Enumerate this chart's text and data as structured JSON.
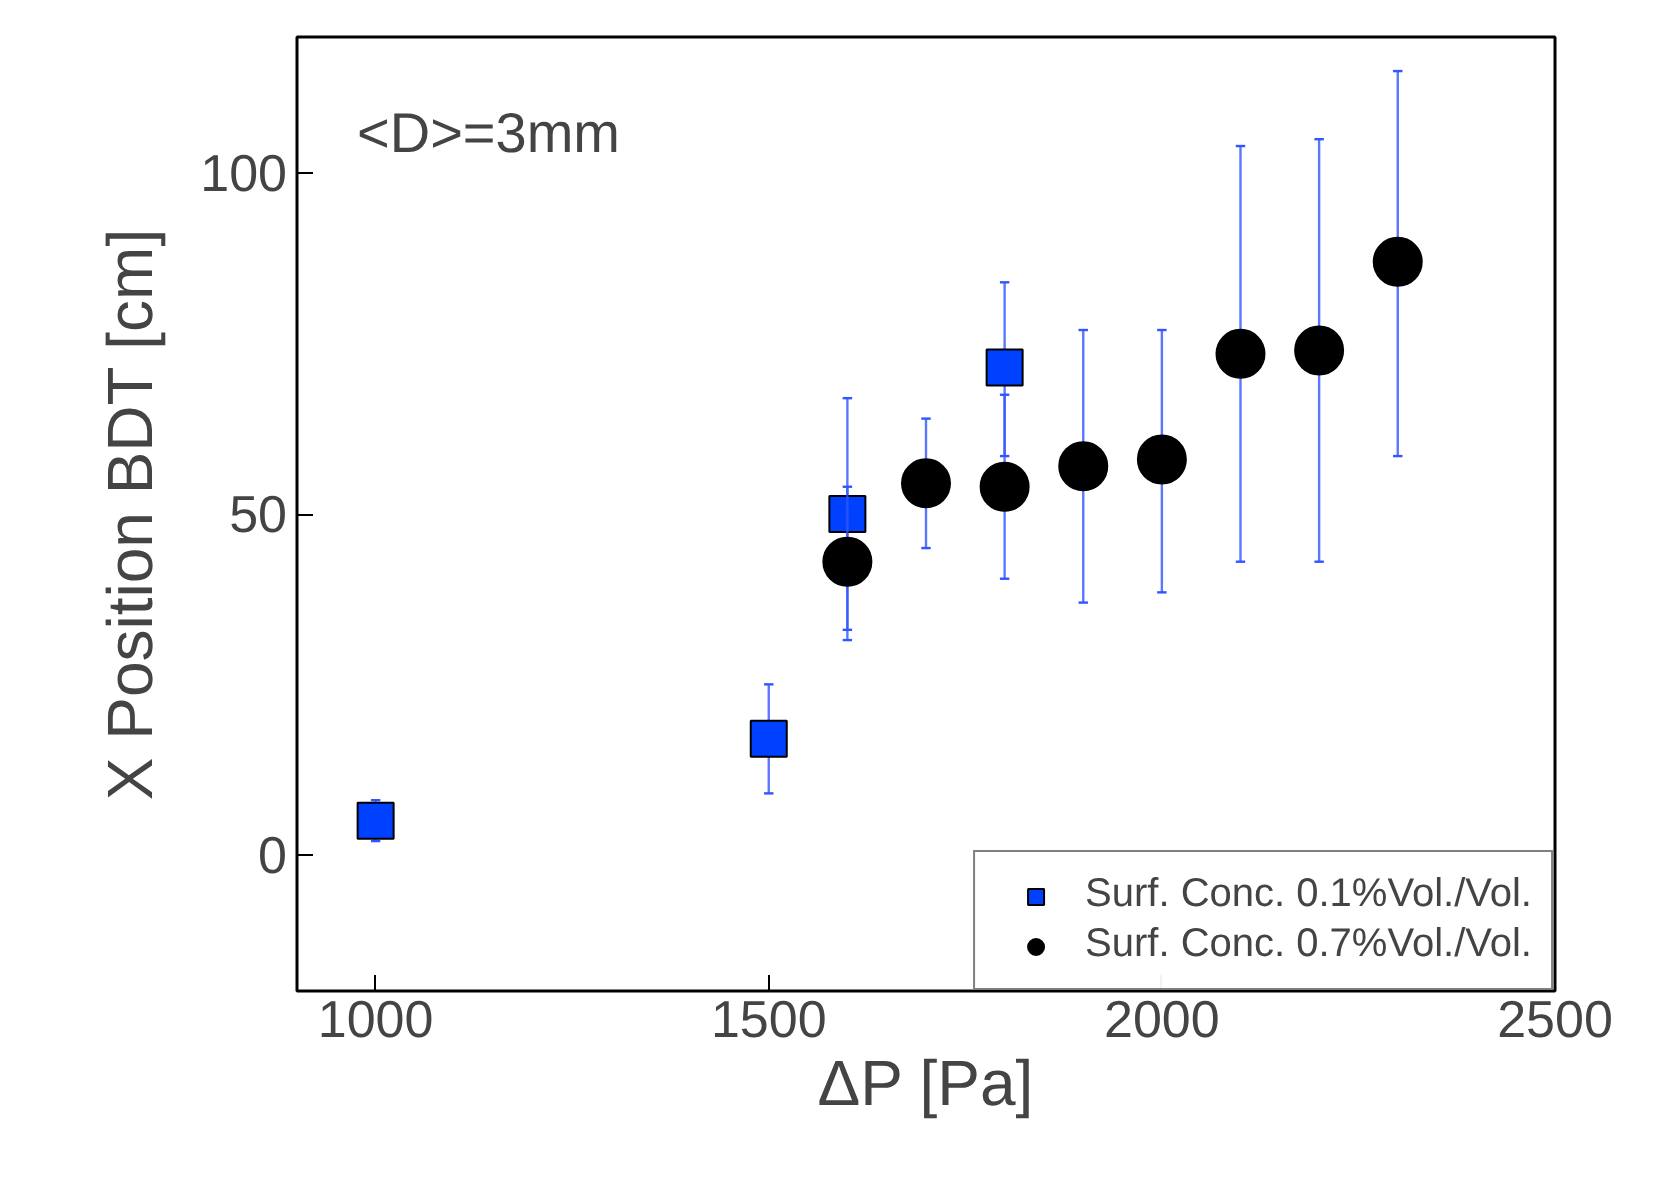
{
  "chart_data": {
    "type": "scatter",
    "xlabel": "ΔP [Pa]",
    "ylabel": "X Position BDT [cm]",
    "annotations": [
      "<D>=3mm"
    ],
    "xlim": [
      900,
      2500
    ],
    "xticks": [
      1000,
      1500,
      2000,
      2500
    ],
    "ylim": [
      -20,
      120
    ],
    "yticks": [
      0,
      50,
      100
    ],
    "grid": false,
    "legend": "bottom right",
    "series": [
      {
        "name": "Surf. Conc. 0.1%Vol./Vol.",
        "color": "#0040ff",
        "marker": "square",
        "x": [
          1000,
          1500,
          1600,
          1800
        ],
        "values": [
          5,
          17,
          50,
          71.5
        ],
        "errors": [
          [
            2,
            8
          ],
          [
            9,
            25
          ],
          [
            33,
            67
          ],
          [
            58.5,
            84
          ]
        ]
      },
      {
        "name": "Surf. Conc. 0.7%Vol./Vol.",
        "color": "#000000",
        "marker": "circle",
        "x": [
          1600,
          1700,
          1800,
          1900,
          2000,
          2100,
          2200,
          2300
        ],
        "values": [
          43,
          54.5,
          54,
          57,
          58,
          73.5,
          74,
          87
        ],
        "errors": [
          [
            31.5,
            54
          ],
          [
            45,
            64
          ],
          [
            40.5,
            67.5
          ],
          [
            37,
            77
          ],
          [
            38.5,
            77
          ],
          [
            43,
            104
          ],
          [
            43,
            105
          ],
          [
            58.5,
            115
          ]
        ]
      }
    ]
  }
}
